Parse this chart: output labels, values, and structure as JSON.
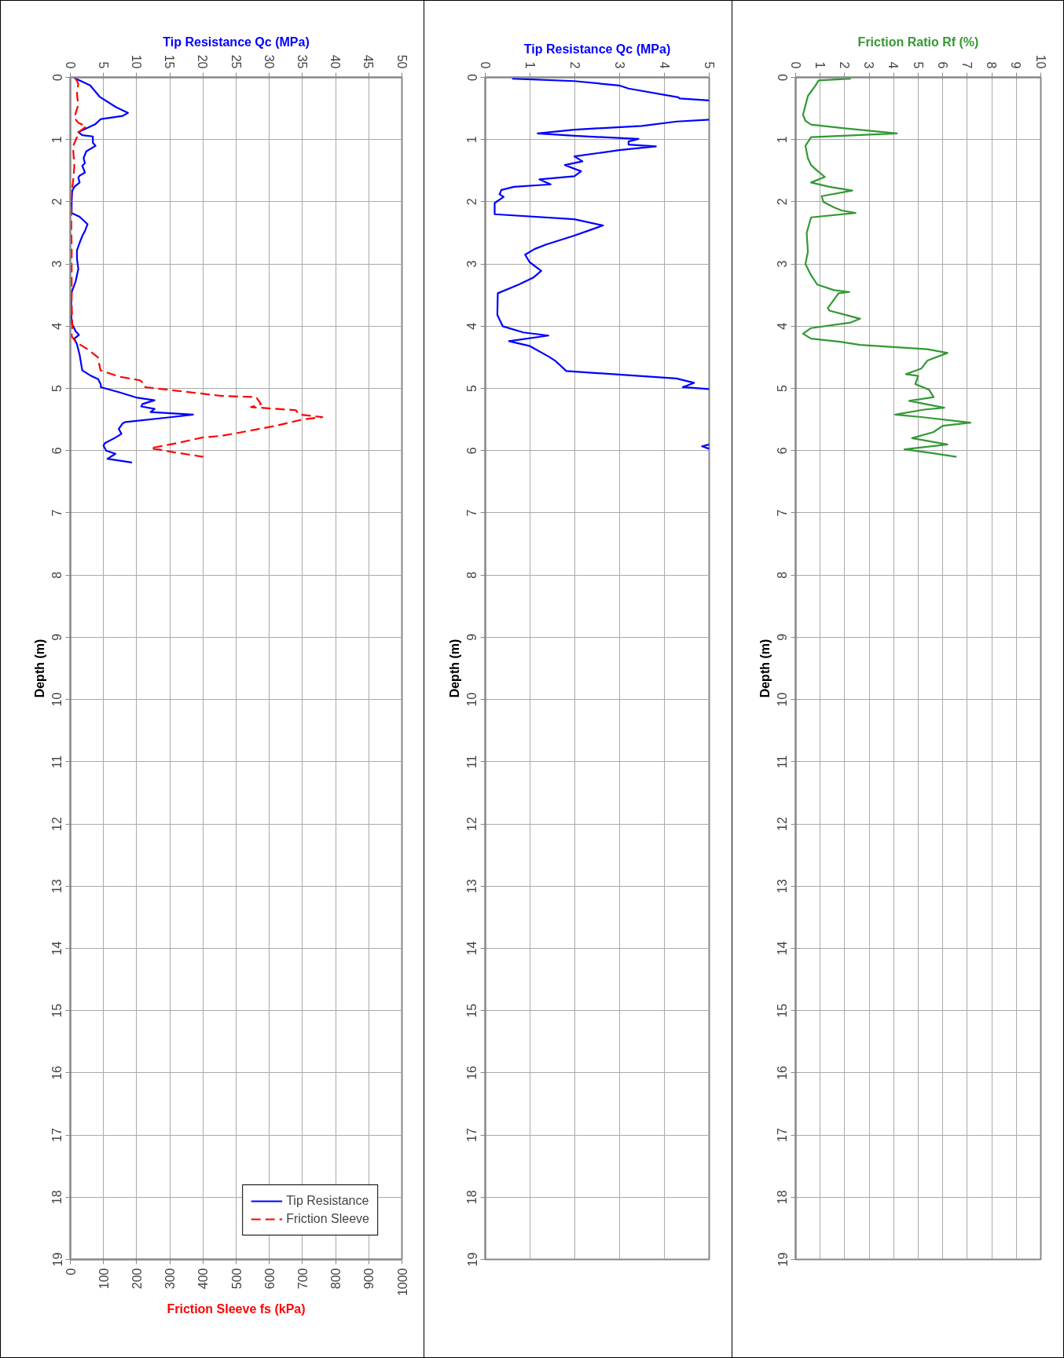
{
  "chart_data": [
    {
      "type": "line",
      "xlabel": "Friction Sleeve fs (kPa)",
      "x2label": "Tip Resistance Qc (MPa)",
      "ylabel": "Depth (m)",
      "xlim": [
        0,
        1000
      ],
      "xticks": [
        0,
        100,
        200,
        300,
        400,
        500,
        600,
        700,
        800,
        900,
        1000
      ],
      "x2lim": [
        0,
        50
      ],
      "x2ticks": [
        0,
        5,
        10,
        15,
        20,
        25,
        30,
        35,
        40,
        45,
        50
      ],
      "ylim": [
        19,
        0
      ],
      "yticks": [
        0,
        1,
        2,
        3,
        4,
        5,
        6,
        7,
        8,
        9,
        10,
        11,
        12,
        13,
        14,
        15,
        16,
        17,
        18,
        19
      ],
      "grid": true,
      "legend": "bottom right",
      "series": [
        {
          "name": "Tip Resistance",
          "color": "#0000ff",
          "axis": "x2",
          "line_style": "solid",
          "x": [
            0.6,
            3.0,
            4.4,
            6.9,
            8.7,
            7.9,
            4.6,
            3.8,
            1.2,
            1.8,
            3.4,
            3.4,
            3.8,
            2.4,
            2.0,
            2.2,
            1.8,
            2.2,
            1.4,
            1.2,
            1.4,
            0.6,
            0.3,
            0.2,
            0.2,
            1.4,
            2.6,
            2.2,
            1.8,
            1.4,
            1.0,
            1.0,
            1.2,
            0.8,
            0.2,
            0.1,
            0.2,
            0.8,
            1.3,
            0.6,
            1.0,
            1.4,
            1.8,
            3.0,
            4.2,
            4.6,
            4.6,
            7.3,
            10.1,
            12.7,
            10.9,
            10.7,
            12.7,
            12.1,
            18.5,
            15.3,
            8.3,
            7.9,
            7.3,
            7.7,
            6.8,
            5.2,
            5.0,
            5.4,
            6.8,
            5.6,
            9.3
          ],
          "values": [
            0.01,
            0.13,
            0.31,
            0.48,
            0.57,
            0.62,
            0.67,
            0.75,
            0.88,
            0.93,
            0.95,
            1.05,
            1.1,
            1.19,
            1.3,
            1.38,
            1.42,
            1.53,
            1.58,
            1.61,
            1.69,
            1.76,
            1.82,
            1.99,
            2.18,
            2.24,
            2.36,
            2.47,
            2.55,
            2.66,
            2.78,
            2.91,
            3.08,
            3.28,
            3.45,
            3.7,
            3.95,
            4.08,
            4.14,
            4.2,
            4.29,
            4.46,
            4.71,
            4.79,
            4.85,
            4.94,
            4.98,
            5.06,
            5.15,
            5.19,
            5.25,
            5.29,
            5.33,
            5.38,
            5.42,
            5.46,
            5.54,
            5.56,
            5.65,
            5.73,
            5.79,
            5.88,
            5.92,
            6.0,
            6.05,
            6.13,
            6.19
          ]
        },
        {
          "name": "Friction Sleeve",
          "color": "#ff0000",
          "line_style": "dashed",
          "x": [
            16,
            24,
            20,
            24,
            12,
            24,
            48,
            20,
            20,
            8,
            12,
            8,
            2,
            4,
            4,
            6,
            4,
            16,
            52,
            83,
            91,
            147,
            210,
            226,
            226,
            457,
            560,
            575,
            545,
            680,
            690,
            760,
            700,
            620,
            560,
            500,
            457,
            397,
            321,
            242,
            305,
            401
          ],
          "values": [
            0.02,
            0.1,
            0.27,
            0.44,
            0.65,
            0.73,
            0.79,
            0.9,
            0.96,
            1.11,
            1.44,
            1.69,
            1.95,
            2.78,
            3.62,
            4.0,
            4.16,
            4.25,
            4.37,
            4.5,
            4.71,
            4.81,
            4.87,
            4.94,
            4.98,
            5.12,
            5.14,
            5.25,
            5.3,
            5.35,
            5.42,
            5.46,
            5.5,
            5.6,
            5.66,
            5.72,
            5.76,
            5.79,
            5.88,
            5.96,
            6.02,
            6.1
          ]
        }
      ]
    },
    {
      "type": "line",
      "xlabel": "Tip Resistance Qc (MPa)",
      "ylabel": "Depth (m)",
      "xlim": [
        0,
        5
      ],
      "xticks": [
        0,
        1,
        2,
        3,
        4,
        5
      ],
      "ylim": [
        19,
        0
      ],
      "yticks": [
        0,
        1,
        2,
        3,
        4,
        5,
        6,
        7,
        8,
        9,
        10,
        11,
        12,
        13,
        14,
        15,
        16,
        17,
        18,
        19
      ],
      "grid": true,
      "series": [
        {
          "color": "#0000ff",
          "line_style": "solid",
          "x": [
            0.6,
            1.99,
            2.99,
            3.2,
            4.31,
            4.34,
            5.0,
            null,
            5.0,
            4.27,
            3.49,
            1.99,
            1.17,
            1.99,
            3.42,
            3.2,
            3.2,
            3.81,
            2.99,
            1.99,
            2.17,
            1.78,
            2.14,
            1.99,
            1.21,
            1.46,
            0.64,
            0.36,
            0.32,
            0.41,
            0.21,
            0.21,
            1.99,
            2.63,
            2.28,
            1.96,
            1.35,
            1.1,
            0.89,
            0.99,
            1.25,
            1.07,
            0.75,
            0.28,
            0.27,
            0.39,
            0.85,
            1.41,
            0.53,
            1.0,
            1.42,
            1.57,
            1.81,
            4.27,
            4.66,
            4.41,
            5.0,
            null,
            5.0,
            4.84,
            5.0
          ],
          "values": [
            0.02,
            0.06,
            0.13,
            0.18,
            0.32,
            0.34,
            0.37,
            null,
            0.68,
            0.71,
            0.78,
            0.84,
            0.9,
            0.94,
            0.99,
            1.03,
            1.08,
            1.11,
            1.17,
            1.27,
            1.35,
            1.41,
            1.51,
            1.59,
            1.64,
            1.72,
            1.76,
            1.81,
            1.88,
            1.92,
            2.02,
            2.2,
            2.28,
            2.38,
            2.47,
            2.55,
            2.69,
            2.76,
            2.85,
            2.97,
            3.11,
            3.22,
            3.33,
            3.47,
            3.82,
            4.0,
            4.1,
            4.15,
            4.24,
            4.32,
            4.49,
            4.56,
            4.72,
            4.84,
            4.91,
            4.98,
            5.01,
            null,
            5.9,
            5.93,
            5.97
          ]
        }
      ]
    },
    {
      "type": "line",
      "xlabel": "Friction Ratio Rf (%)",
      "ylabel": "Depth (m)",
      "xlim": [
        0,
        10
      ],
      "xticks": [
        0,
        1,
        2,
        3,
        4,
        5,
        6,
        7,
        8,
        9,
        10
      ],
      "ylim": [
        19,
        0
      ],
      "yticks": [
        0,
        1,
        2,
        3,
        4,
        5,
        6,
        7,
        8,
        9,
        10,
        11,
        12,
        13,
        14,
        15,
        16,
        17,
        18,
        19
      ],
      "grid": true,
      "series": [
        {
          "color": "#339933",
          "line_style": "solid",
          "x": [
            2.25,
            0.94,
            0.81,
            0.5,
            0.4,
            0.3,
            0.4,
            0.63,
            2.0,
            4.13,
            0.63,
            0.4,
            0.5,
            0.63,
            0.88,
            1.19,
            0.63,
            1.38,
            2.31,
            1.06,
            1.13,
            1.56,
            1.88,
            2.44,
            0.63,
            0.45,
            0.5,
            0.4,
            0.63,
            0.88,
            1.56,
            2.19,
            1.75,
            1.31,
            1.38,
            2.06,
            2.63,
            2.25,
            0.63,
            0.3,
            0.63,
            1.81,
            2.63,
            5.38,
            6.19,
            5.38,
            5.13,
            4.5,
            5.0,
            4.88,
            5.44,
            5.63,
            4.63,
            6.06,
            5.25,
            4.06,
            5.13,
            7.13,
            6.0,
            5.63,
            4.75,
            6.19,
            4.44,
            5.56,
            6.56
          ],
          "values": [
            0.02,
            0.05,
            0.13,
            0.3,
            0.45,
            0.6,
            0.7,
            0.76,
            0.82,
            0.9,
            0.96,
            1.1,
            1.3,
            1.41,
            1.5,
            1.6,
            1.69,
            1.76,
            1.82,
            1.91,
            2.0,
            2.09,
            2.14,
            2.18,
            2.25,
            2.5,
            2.8,
            3.0,
            3.18,
            3.33,
            3.42,
            3.45,
            3.47,
            3.71,
            3.75,
            3.82,
            3.88,
            3.94,
            4.03,
            4.12,
            4.2,
            4.25,
            4.3,
            4.37,
            4.43,
            4.55,
            4.68,
            4.77,
            4.8,
            4.93,
            5.02,
            5.14,
            5.2,
            5.31,
            5.34,
            5.42,
            5.46,
            5.55,
            5.6,
            5.7,
            5.8,
            5.9,
            5.98,
            6.04,
            6.1
          ]
        }
      ]
    }
  ]
}
